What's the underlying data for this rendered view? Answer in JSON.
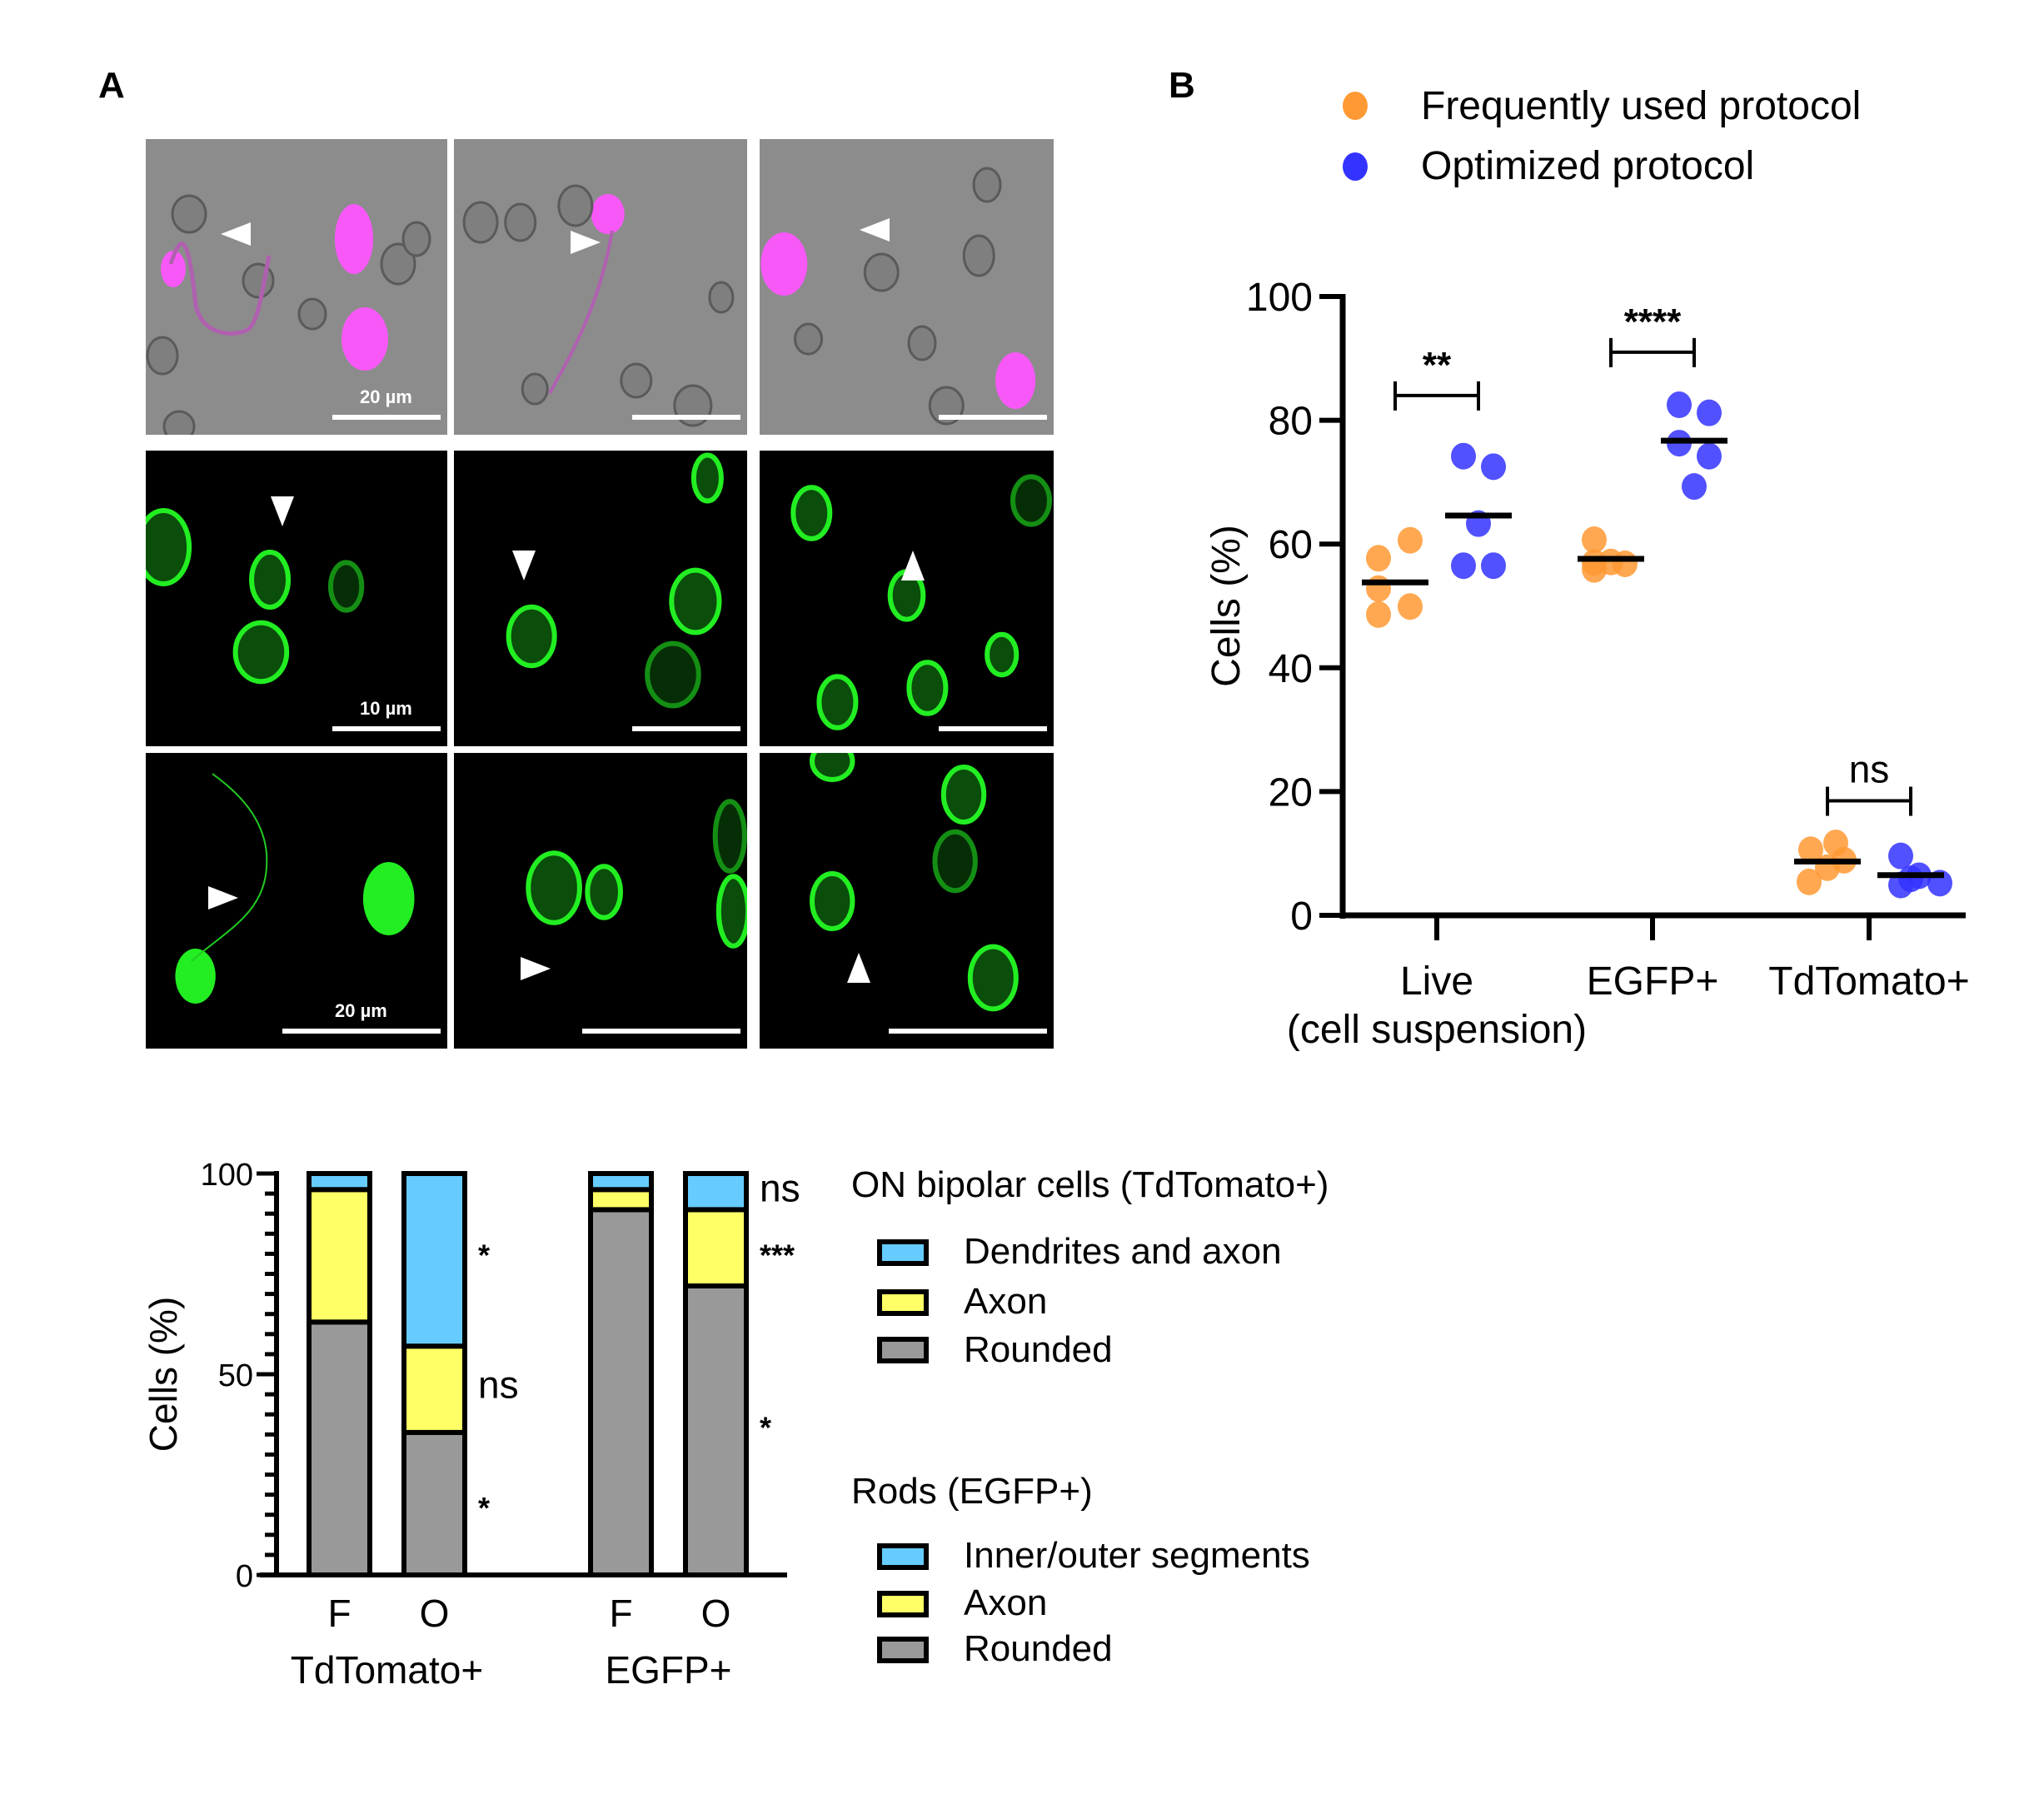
{
  "panel_labels": {
    "a": "A",
    "b": "B"
  },
  "micrographs": {
    "row1": {
      "type": "brightfield + TdTomato (magenta)",
      "scale_label": "20 µm"
    },
    "row2": {
      "type": "EGFP (green)",
      "scale_label": "10 µm"
    },
    "row3": {
      "type": "EGFP (green)",
      "scale_label": "20 µm"
    }
  },
  "colors": {
    "frequently": "#FF9933",
    "optimized": "#3333FF",
    "blue_segment": "#66CCFF",
    "yellow_segment": "#FFFF66",
    "gray_segment": "#999999",
    "magenta": "#FF44FF",
    "green": "#22EE22"
  },
  "legend_b": {
    "items": [
      {
        "label": "Frequently used protocol",
        "color": "#FF9933"
      },
      {
        "label": "Optimized protocol",
        "color": "#3333FF"
      }
    ]
  },
  "legend_c": {
    "groups": [
      {
        "title": "ON bipolar cells (TdTomato+)",
        "items": [
          {
            "label": "Dendrites and axon",
            "color": "#66CCFF"
          },
          {
            "label": "Axon",
            "color": "#FFFF66"
          },
          {
            "label": "Rounded",
            "color": "#999999"
          }
        ]
      },
      {
        "title": "Rods (EGFP+)",
        "items": [
          {
            "label": "Inner/outer segments",
            "color": "#66CCFF"
          },
          {
            "label": "Axon",
            "color": "#FFFF66"
          },
          {
            "label": "Rounded",
            "color": "#999999"
          }
        ]
      }
    ]
  },
  "chart_data": [
    {
      "type": "scatter",
      "title": "",
      "ylabel": "Cells (%)",
      "xlabel": "",
      "ylim": [
        0,
        100
      ],
      "yticks": [
        0,
        20,
        40,
        60,
        80,
        100
      ],
      "grid": false,
      "legend": "top",
      "categories": [
        "Live\n(cell suspension)",
        "EGFP+",
        "TdTomato+"
      ],
      "category_lines": [
        [
          "Live",
          "(cell suspension)"
        ],
        [
          "EGFP+"
        ],
        [
          "TdTomato+"
        ]
      ],
      "series": [
        {
          "name": "Frequently used protocol",
          "color": "#FF9933",
          "points": [
            [
              60.6,
              57.7,
              52.8,
              49.9,
              48.6
            ],
            [
              60.7,
              57.1,
              57.0,
              56.8,
              55.9
            ],
            [
              11.7,
              10.6,
              8.9,
              7.7,
              5.4
            ]
          ],
          "means": [
            53.8,
            57.6,
            8.7
          ]
        },
        {
          "name": "Optimized protocol",
          "color": "#3333FF",
          "points": [
            [
              74.2,
              72.5,
              63.3,
              56.5,
              56.5
            ],
            [
              82.5,
              81.2,
              76.3,
              74.2,
              69.3
            ],
            [
              9.6,
              6.4,
              5.9,
              5.2,
              4.9
            ]
          ],
          "means": [
            64.6,
            76.7,
            6.5
          ]
        }
      ],
      "significance": [
        {
          "category": "Live\n(cell suspension)",
          "label": "**",
          "y": 84
        },
        {
          "category": "EGFP+",
          "label": "****",
          "y": 91
        },
        {
          "category": "TdTomato+",
          "label": "ns",
          "y": 18.5
        }
      ]
    },
    {
      "type": "bar",
      "stacked": true,
      "title": "",
      "ylabel": "Cells (%)",
      "ylim": [
        0,
        100
      ],
      "yticks": [
        0,
        50,
        100
      ],
      "minor_tick_step": 5,
      "grid": false,
      "legend": "right",
      "groups": [
        "TdTomato+",
        "EGFP+"
      ],
      "categories": [
        "F",
        "O",
        "F",
        "O"
      ],
      "category_groups": [
        "TdTomato+",
        "TdTomato+",
        "EGFP+",
        "EGFP+"
      ],
      "series": [
        {
          "name": "Rounded",
          "color": "#999999",
          "values": [
            63,
            35.5,
            91,
            72
          ]
        },
        {
          "name": "Axon",
          "color": "#FFFF66",
          "values": [
            33,
            21.5,
            5,
            19
          ]
        },
        {
          "name": "Dendrites and axon / Inner/outer segments",
          "color": "#66CCFF",
          "values": [
            4,
            43,
            4,
            9
          ]
        }
      ],
      "annotations": [
        {
          "bar": 1,
          "y": 80,
          "label": "*"
        },
        {
          "bar": 1,
          "y": 47,
          "label": "ns"
        },
        {
          "bar": 1,
          "y": 17,
          "label": "*"
        },
        {
          "bar": 3,
          "y": 96,
          "label": "ns"
        },
        {
          "bar": 3,
          "y": 80,
          "label": "***"
        },
        {
          "bar": 3,
          "y": 37,
          "label": "*"
        }
      ]
    }
  ]
}
